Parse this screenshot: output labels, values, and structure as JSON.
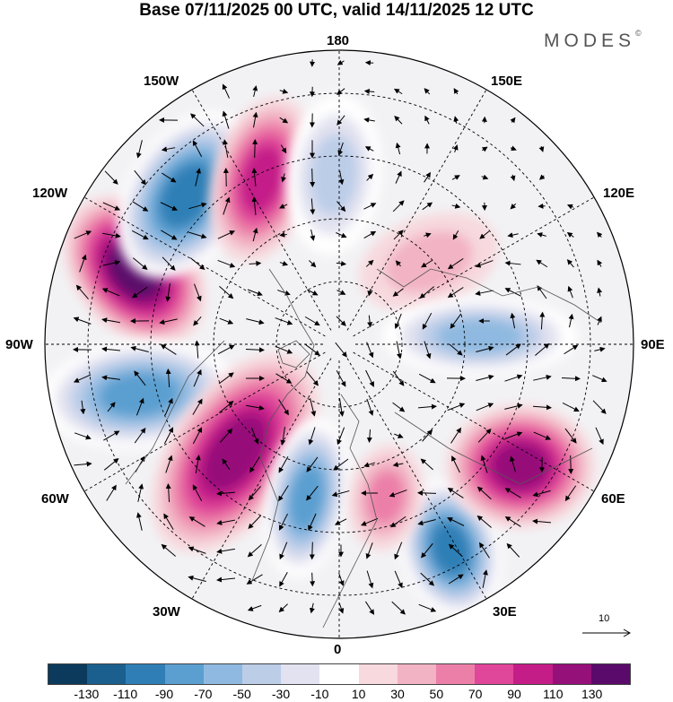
{
  "title": "Base 07/11/2025 00 UTC, valid 14/11/2025 12 UTC",
  "brand": {
    "name": "MODES",
    "symbol": "©"
  },
  "longitude_labels": {
    "top": "180",
    "bottom": "0",
    "left": "90W",
    "right": "90E",
    "upper_left": "150W",
    "upper_right": "150E",
    "mid_upper_left": "120W",
    "mid_upper_right": "120E",
    "mid_lower_left": "60W",
    "mid_lower_right": "60E",
    "lower_left": "30W",
    "lower_right": "30E"
  },
  "colorbar": {
    "colors": [
      "#0b3a5c",
      "#1a5f8e",
      "#2f7fb6",
      "#5a9fd0",
      "#8fb9e0",
      "#bccde8",
      "#e2e2f0",
      "#ffffff",
      "#f7d9de",
      "#f2b3c4",
      "#ec7fa8",
      "#e0469a",
      "#c41d88",
      "#96107a",
      "#5a0a6a"
    ],
    "ticks": [
      "-130",
      "-110",
      "-90",
      "-70",
      "-50",
      "-30",
      "-10",
      "10",
      "30",
      "50",
      "70",
      "90",
      "110",
      "130"
    ]
  },
  "vector_scale": {
    "value": "10"
  },
  "anomaly_centers": [
    {
      "sign": "positive",
      "strength": 130
    },
    {
      "sign": "negative",
      "strength": -110
    },
    {
      "sign": "positive",
      "strength": 90
    },
    {
      "sign": "negative",
      "strength": -50
    },
    {
      "sign": "positive",
      "strength": 30
    },
    {
      "sign": "negative",
      "strength": -70
    },
    {
      "sign": "negative",
      "strength": -90
    },
    {
      "sign": "positive",
      "strength": 110
    },
    {
      "sign": "negative",
      "strength": -90
    },
    {
      "sign": "negative",
      "strength": -110
    },
    {
      "sign": "positive",
      "strength": 110
    },
    {
      "sign": "positive",
      "strength": 50
    }
  ]
}
